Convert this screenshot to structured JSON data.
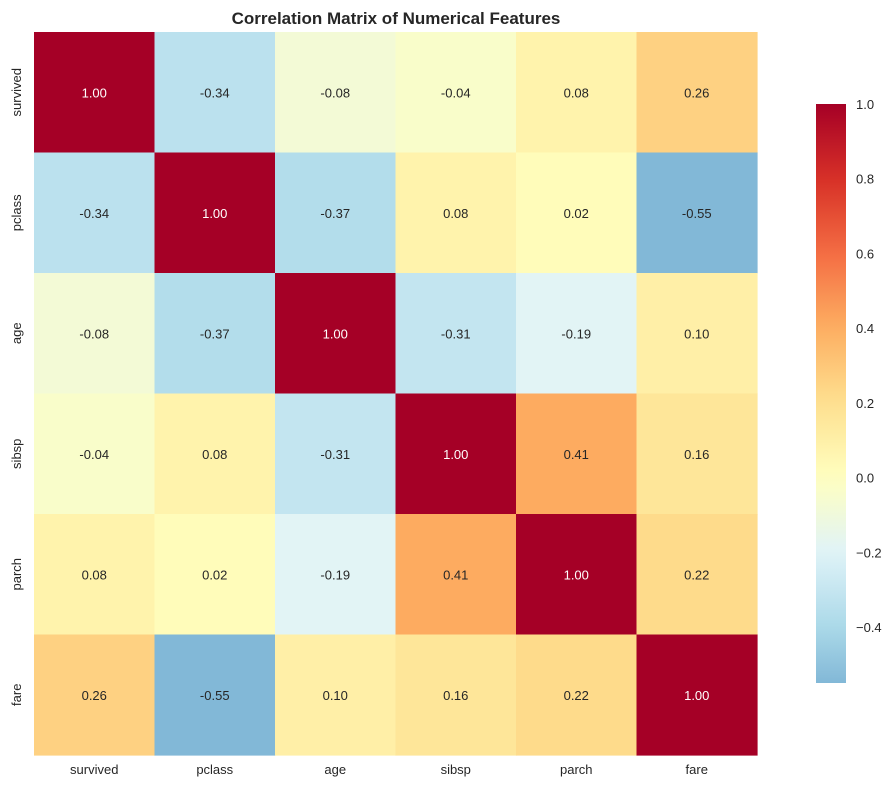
{
  "chart_data": {
    "type": "heatmap",
    "title": "Correlation Matrix of Numerical Features",
    "x_labels": [
      "survived",
      "pclass",
      "age",
      "sibsp",
      "parch",
      "fare"
    ],
    "y_labels": [
      "survived",
      "pclass",
      "age",
      "sibsp",
      "parch",
      "fare"
    ],
    "values": [
      [
        1.0,
        -0.34,
        -0.08,
        -0.04,
        0.08,
        0.26
      ],
      [
        -0.34,
        1.0,
        -0.37,
        0.08,
        0.02,
        -0.55
      ],
      [
        -0.08,
        -0.37,
        1.0,
        -0.31,
        -0.19,
        0.1
      ],
      [
        -0.04,
        0.08,
        -0.31,
        1.0,
        0.41,
        0.16
      ],
      [
        0.08,
        0.02,
        -0.19,
        0.41,
        1.0,
        0.22
      ],
      [
        0.26,
        -0.55,
        0.1,
        0.16,
        0.22,
        1.0
      ]
    ],
    "value_format": "0.00",
    "colormap": "RdYlBu_r",
    "colorbar": {
      "range": [
        -0.55,
        1.0
      ],
      "center": 0.0,
      "ticks": [
        1.0,
        0.8,
        0.6,
        0.4,
        0.2,
        0.0,
        -0.2,
        -0.4
      ],
      "tick_labels": [
        "1.0",
        "0.8",
        "0.6",
        "0.4",
        "0.2",
        "0.0",
        "−0.2",
        "−0.4"
      ]
    },
    "grid": false
  }
}
